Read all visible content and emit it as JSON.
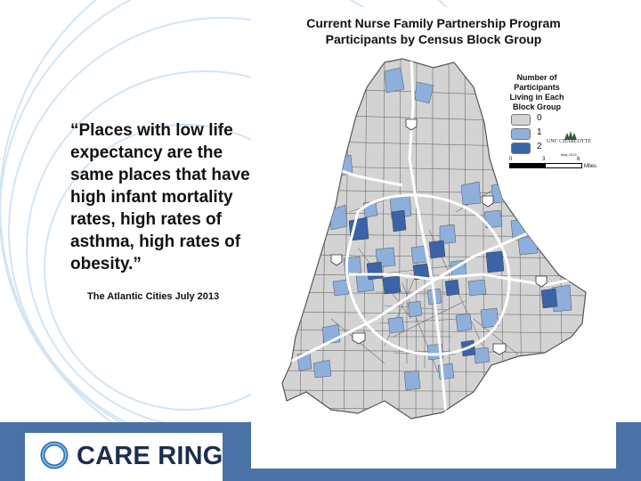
{
  "slide": {
    "quote": "“Places with low life expectancy are the same places that have high infant mortality rates, high rates of asthma, high rates of obesity.”",
    "source": "The Atlantic Cities July 2013"
  },
  "map": {
    "title_line1": "Current Nurse Family Partnership Program",
    "title_line2": "Participants by Census Block Group",
    "legend": {
      "title_line1": "Number of",
      "title_line2": "Participants",
      "title_line3": "Living in Each",
      "title_line4": "Block Group",
      "items": [
        {
          "label": "0",
          "color": "#d3d3d3"
        },
        {
          "label": "1",
          "color": "#8eaedb"
        },
        {
          "label": "2",
          "color": "#3a63a8"
        }
      ]
    },
    "scale": {
      "tick0": "0",
      "tick1": "3",
      "tick2": "6",
      "unit": "Miles"
    },
    "uncc": {
      "name": "UNC CHARLOTTE",
      "date": "May 2013"
    },
    "highway_shields": [
      "77",
      "85",
      "77",
      "85",
      "485",
      "74"
    ]
  },
  "brand": {
    "logo_text": "CARE RING",
    "bar_color": "#4a72a6",
    "ring_color": "#2a6fb3"
  }
}
